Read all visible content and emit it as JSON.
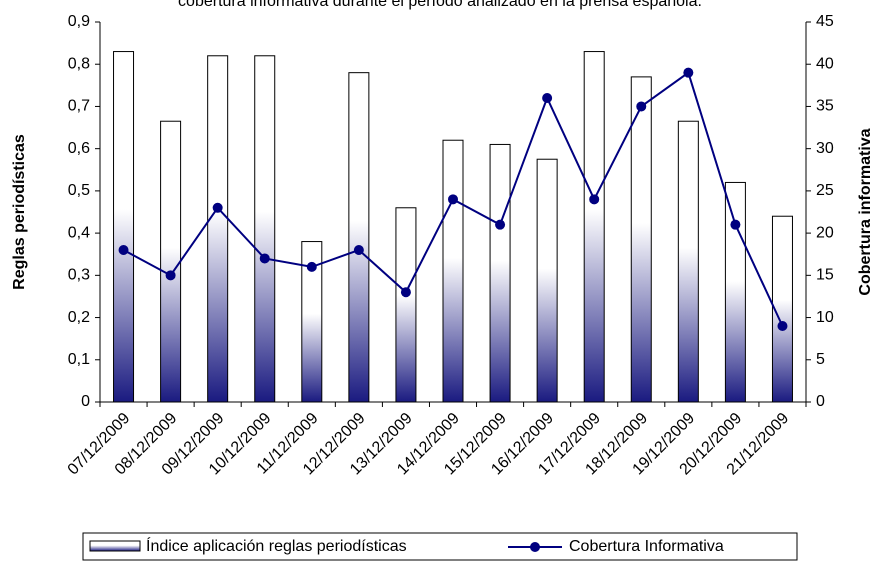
{
  "chart_data": {
    "type": "bar_line",
    "title": "cobertura informativa durante el período analizado en la prensa española.",
    "ylabel": "Reglas periodísticas",
    "y2label": "Cobertura informativa",
    "categories": [
      "07/12/2009",
      "08/12/2009",
      "09/12/2009",
      "10/12/2009",
      "11/12/2009",
      "12/12/2009",
      "13/12/2009",
      "14/12/2009",
      "15/12/2009",
      "16/12/2009",
      "17/12/2009",
      "18/12/2009",
      "19/12/2009",
      "20/12/2009",
      "21/12/2009"
    ],
    "series": [
      {
        "name": "Índice aplicación reglas periodísticas",
        "type": "bar",
        "axis": "y",
        "color": "#1a1a80",
        "values": [
          0.83,
          0.665,
          0.82,
          0.82,
          0.38,
          0.78,
          0.46,
          0.62,
          0.61,
          0.575,
          0.83,
          0.77,
          0.665,
          0.52,
          0.44
        ]
      },
      {
        "name": "Cobertura Informativa",
        "type": "line",
        "axis": "y2",
        "color": "#000080",
        "values": [
          18,
          15,
          23,
          17,
          16,
          18,
          13,
          24,
          21,
          36,
          24,
          35,
          39,
          21,
          9
        ]
      }
    ],
    "ylim": [
      0,
      0.9
    ],
    "yticks": [
      0,
      {
        "value": 0.1,
        "label": "0,1"
      },
      {
        "value": 0.2,
        "label": "0,2"
      },
      {
        "value": 0.3,
        "label": "0,3"
      },
      {
        "value": 0.4,
        "label": "0,4"
      },
      {
        "value": 0.5,
        "label": "0,5"
      },
      {
        "value": 0.6,
        "label": "0,6"
      },
      {
        "value": 0.7,
        "label": "0,7"
      },
      {
        "value": 0.8,
        "label": "0,8"
      },
      {
        "value": 0.9,
        "label": "0,9"
      }
    ],
    "y2lim": [
      0,
      45
    ],
    "y2ticks": [
      0,
      5,
      10,
      15,
      20,
      25,
      30,
      35,
      40,
      45
    ],
    "legend": "bottom"
  }
}
